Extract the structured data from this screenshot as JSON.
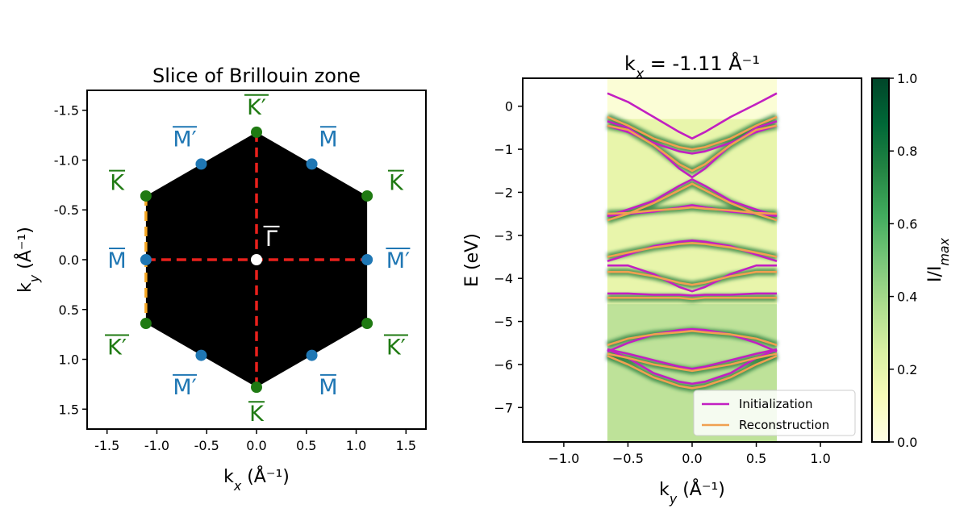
{
  "chart_data": [
    {
      "type": "scatter",
      "title": "Slice of Brillouin zone",
      "xlabel": "k_x (Å⁻¹)",
      "ylabel": "k_y (Å⁻¹)",
      "xlim": [
        -1.7,
        1.7
      ],
      "ylim": [
        1.7,
        -1.7
      ],
      "x_ticks": [
        -1.5,
        -1.0,
        -0.5,
        0.0,
        0.5,
        1.0,
        1.5
      ],
      "x_tick_labels": [
        "-1.5",
        "-1.0",
        "-0.5",
        "0.0",
        "0.5",
        "1.0",
        "1.5"
      ],
      "y_ticks": [
        -1.5,
        -1.0,
        -0.5,
        0.0,
        0.5,
        1.0,
        1.5
      ],
      "y_tick_labels": [
        "-1.5",
        "-1.0",
        "-0.5",
        "0.0",
        "0.5",
        "1.0",
        "1.5"
      ],
      "hexagon_vertices": [
        [
          0,
          -1.28
        ],
        [
          1.11,
          -0.64
        ],
        [
          1.11,
          0.64
        ],
        [
          0,
          1.28
        ],
        [
          -1.11,
          0.64
        ],
        [
          -1.11,
          -0.64
        ]
      ],
      "hexagon_color": "#000000",
      "cut_lines": [
        {
          "name": "kx-cut",
          "x": [
            -1.11,
            1.11
          ],
          "y": [
            0,
            0
          ],
          "color": "#e8211c",
          "style": "dashed"
        },
        {
          "name": "ky-cut",
          "x": [
            0,
            0
          ],
          "y": [
            -1.28,
            1.28
          ],
          "color": "#e8211c",
          "style": "dashed"
        },
        {
          "name": "current-slice",
          "x": [
            -1.11,
            -1.11
          ],
          "y": [
            -0.64,
            0.64
          ],
          "color": "#f5a623",
          "style": "dashed"
        }
      ],
      "points": [
        {
          "name": "gamma",
          "x": 0.0,
          "y": 0.0,
          "color": "#ffffff"
        },
        {
          "name": "K-top",
          "x": 0.0,
          "y": -1.28,
          "color": "#1f7a12"
        },
        {
          "name": "K-upper-right",
          "x": 1.11,
          "y": -0.64,
          "color": "#1f7a12"
        },
        {
          "name": "K-lower-right",
          "x": 1.11,
          "y": 0.64,
          "color": "#1f7a12"
        },
        {
          "name": "K-bottom",
          "x": 0.0,
          "y": 1.28,
          "color": "#1f7a12"
        },
        {
          "name": "K-lower-left",
          "x": -1.11,
          "y": 0.64,
          "color": "#1f7a12"
        },
        {
          "name": "K-upper-left",
          "x": -1.11,
          "y": -0.64,
          "color": "#1f7a12"
        },
        {
          "name": "M-upper-left",
          "x": -0.555,
          "y": -0.96,
          "color": "#1f77b4"
        },
        {
          "name": "M-upper-right",
          "x": 0.555,
          "y": -0.96,
          "color": "#1f77b4"
        },
        {
          "name": "M-right",
          "x": 1.11,
          "y": 0.0,
          "color": "#1f77b4"
        },
        {
          "name": "M-lower-right",
          "x": 0.555,
          "y": 0.96,
          "color": "#1f77b4"
        },
        {
          "name": "M-lower-left",
          "x": -0.555,
          "y": 0.96,
          "color": "#1f77b4"
        },
        {
          "name": "M-left",
          "x": -1.11,
          "y": 0.0,
          "color": "#1f77b4"
        }
      ],
      "point_labels": [
        {
          "text": "K′",
          "x": 0.0,
          "y": -1.54,
          "color": "#1f7a12"
        },
        {
          "text": "K",
          "x": 0.0,
          "y": 1.54,
          "color": "#1f7a12"
        },
        {
          "text": "K",
          "x": -1.4,
          "y": -0.78,
          "color": "#1f7a12"
        },
        {
          "text": "K",
          "x": 1.4,
          "y": -0.78,
          "color": "#1f7a12"
        },
        {
          "text": "K′",
          "x": -1.4,
          "y": 0.87,
          "color": "#1f7a12"
        },
        {
          "text": "K′",
          "x": 1.4,
          "y": 0.87,
          "color": "#1f7a12"
        },
        {
          "text": "M′",
          "x": -0.72,
          "y": -1.22,
          "color": "#1f77b4"
        },
        {
          "text": "M",
          "x": 0.72,
          "y": -1.22,
          "color": "#1f77b4"
        },
        {
          "text": "M",
          "x": -1.4,
          "y": 0.0,
          "color": "#1f77b4"
        },
        {
          "text": "M′",
          "x": 1.42,
          "y": 0.0,
          "color": "#1f77b4"
        },
        {
          "text": "M′",
          "x": -0.72,
          "y": 1.27,
          "color": "#1f77b4"
        },
        {
          "text": "M",
          "x": 0.72,
          "y": 1.27,
          "color": "#1f77b4"
        },
        {
          "text": "Γ",
          "x": 0.15,
          "y": -0.22,
          "color": "#ffffff"
        }
      ]
    },
    {
      "type": "line",
      "title": "k_x = -1.11 Å⁻¹",
      "xlabel": "k_y (Å⁻¹)",
      "ylabel": "E (eV)",
      "xlim": [
        -1.32,
        1.32
      ],
      "ylim": [
        -7.8,
        0.65
      ],
      "x_ticks": [
        -1.0,
        -0.5,
        0.0,
        0.5,
        1.0
      ],
      "x_tick_labels": [
        "−1.0",
        "−0.5",
        "0.0",
        "0.5",
        "1.0"
      ],
      "y_ticks": [
        0,
        -1,
        -2,
        -3,
        -4,
        -5,
        -6,
        -7
      ],
      "y_tick_labels": [
        "0",
        "−1",
        "−2",
        "−3",
        "−4",
        "−5",
        "−6",
        "−7"
      ],
      "data_extent_x": [
        -0.66,
        0.66
      ],
      "colorbar": {
        "label": "I/I_max",
        "range": [
          0.0,
          1.0
        ],
        "ticks": [
          0.0,
          0.2,
          0.4,
          0.6,
          0.8,
          1.0
        ],
        "tick_labels": [
          "0.0",
          "0.2",
          "0.4",
          "0.6",
          "0.8",
          "1.0"
        ],
        "colormap": [
          "#ffffe5",
          "#f7fcb9",
          "#d9f0a3",
          "#addd8e",
          "#78c679",
          "#41ab5d",
          "#238443",
          "#006837",
          "#004529"
        ]
      },
      "legend": {
        "position": "bottom-right",
        "entries": [
          {
            "label": "Initialization",
            "color": "#c21fc2"
          },
          {
            "label": "Reconstruction",
            "color": "#f0a050"
          }
        ]
      },
      "x": [
        -0.66,
        -0.5,
        -0.3,
        -0.1,
        0.0,
        0.1,
        0.3,
        0.5,
        0.66
      ],
      "series": [
        {
          "name": "Initialization",
          "color": "#c21fc2",
          "bands": [
            [
              0.3,
              0.1,
              -0.25,
              -0.6,
              -0.75,
              -0.6,
              -0.25,
              0.05,
              0.3
            ],
            [
              -0.45,
              -0.6,
              -0.85,
              -1.05,
              -1.1,
              -1.05,
              -0.85,
              -0.6,
              -0.45
            ],
            [
              -0.35,
              -0.5,
              -0.9,
              -1.45,
              -1.65,
              -1.45,
              -0.9,
              -0.5,
              -0.35
            ],
            [
              -2.55,
              -2.4,
              -2.2,
              -1.85,
              -1.7,
              -1.85,
              -2.2,
              -2.4,
              -2.55
            ],
            [
              -2.55,
              -2.5,
              -2.45,
              -2.35,
              -2.3,
              -2.35,
              -2.45,
              -2.5,
              -2.55
            ],
            [
              -3.6,
              -3.45,
              -3.25,
              -3.15,
              -3.12,
              -3.15,
              -3.25,
              -3.45,
              -3.6
            ],
            [
              -3.7,
              -3.7,
              -3.9,
              -4.2,
              -4.3,
              -4.2,
              -3.9,
              -3.7,
              -3.7
            ],
            [
              -4.35,
              -4.35,
              -4.38,
              -4.38,
              -4.4,
              -4.38,
              -4.38,
              -4.35,
              -4.35
            ],
            [
              -5.7,
              -5.5,
              -5.3,
              -5.2,
              -5.18,
              -5.2,
              -5.3,
              -5.5,
              -5.7
            ],
            [
              -5.65,
              -5.75,
              -5.9,
              -6.05,
              -6.1,
              -6.05,
              -5.9,
              -5.75,
              -5.65
            ],
            [
              -5.65,
              -5.85,
              -6.2,
              -6.4,
              -6.45,
              -6.4,
              -6.2,
              -5.85,
              -5.65
            ]
          ]
        },
        {
          "name": "Reconstruction",
          "color": "#f0a050",
          "bands": [
            [
              -0.25,
              -0.45,
              -0.75,
              -0.95,
              -1.0,
              -0.95,
              -0.75,
              -0.45,
              -0.25
            ],
            [
              -0.45,
              -0.55,
              -0.9,
              -1.35,
              -1.5,
              -1.35,
              -0.9,
              -0.55,
              -0.45
            ],
            [
              -2.65,
              -2.5,
              -2.25,
              -1.95,
              -1.8,
              -1.95,
              -2.25,
              -2.5,
              -2.65
            ],
            [
              -2.5,
              -2.48,
              -2.42,
              -2.38,
              -2.35,
              -2.38,
              -2.42,
              -2.48,
              -2.5
            ],
            [
              -3.5,
              -3.4,
              -3.28,
              -3.2,
              -3.18,
              -3.2,
              -3.28,
              -3.4,
              -3.5
            ],
            [
              -3.85,
              -3.85,
              -3.95,
              -4.1,
              -4.15,
              -4.1,
              -3.95,
              -3.85,
              -3.85
            ],
            [
              -4.45,
              -4.45,
              -4.45,
              -4.45,
              -4.48,
              -4.45,
              -4.45,
              -4.45,
              -4.45
            ],
            [
              -5.55,
              -5.4,
              -5.3,
              -5.25,
              -5.22,
              -5.25,
              -5.3,
              -5.4,
              -5.55
            ],
            [
              -5.75,
              -5.85,
              -6.0,
              -6.1,
              -6.15,
              -6.1,
              -6.0,
              -5.85,
              -5.75
            ],
            [
              -5.8,
              -6.0,
              -6.3,
              -6.5,
              -6.55,
              -6.5,
              -6.3,
              -6.0,
              -5.8
            ]
          ]
        }
      ]
    }
  ]
}
